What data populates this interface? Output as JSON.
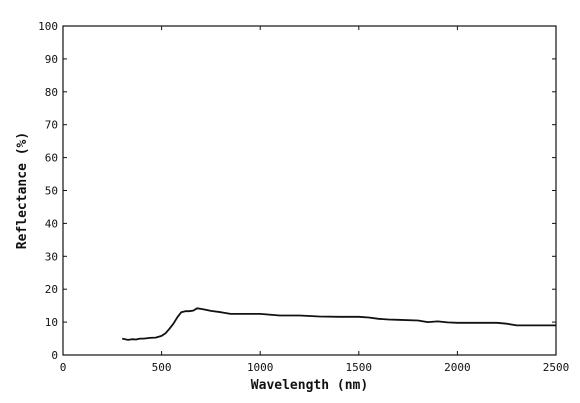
{
  "chart_data": {
    "type": "line",
    "title": "",
    "xlabel": "Wavelength (nm)",
    "ylabel": "Reflectance (%)",
    "xlim": [
      0,
      2500
    ],
    "ylim": [
      0,
      100
    ],
    "x_ticks": [
      0,
      500,
      1000,
      1500,
      2000,
      2500
    ],
    "x_tick_labels": [
      "0",
      "500",
      "1000",
      "1500",
      "2000",
      "2500"
    ],
    "y_ticks": [
      0,
      10,
      20,
      30,
      40,
      50,
      60,
      70,
      80,
      90,
      100
    ],
    "y_tick_labels": [
      "0",
      "10",
      "20",
      "30",
      "40",
      "50",
      "60",
      "70",
      "80",
      "90",
      "100"
    ],
    "grid": false,
    "legend": "none",
    "line_color": "#111111",
    "series": [
      {
        "x": [
          300,
          330,
          350,
          370,
          390,
          410,
          440,
          470,
          500,
          520,
          540,
          560,
          580,
          600,
          620,
          640,
          660,
          680,
          700,
          720,
          750,
          800,
          850,
          900,
          1000,
          1100,
          1200,
          1300,
          1400,
          1500,
          1550,
          1600,
          1650,
          1700,
          1800,
          1850,
          1900,
          1950,
          2000,
          2100,
          2200,
          2250,
          2300,
          2400,
          2500
        ],
        "y": [
          5.0,
          4.6,
          4.8,
          4.7,
          5.0,
          5.0,
          5.2,
          5.3,
          5.8,
          6.6,
          8.0,
          9.5,
          11.5,
          13.0,
          13.3,
          13.3,
          13.5,
          14.2,
          14.0,
          13.8,
          13.4,
          13.0,
          12.5,
          12.5,
          12.5,
          12.0,
          12.0,
          11.7,
          11.6,
          11.6,
          11.4,
          11.0,
          10.8,
          10.7,
          10.5,
          10.0,
          10.2,
          9.9,
          9.8,
          9.8,
          9.8,
          9.5,
          9.0,
          9.0,
          9.0
        ]
      }
    ]
  }
}
